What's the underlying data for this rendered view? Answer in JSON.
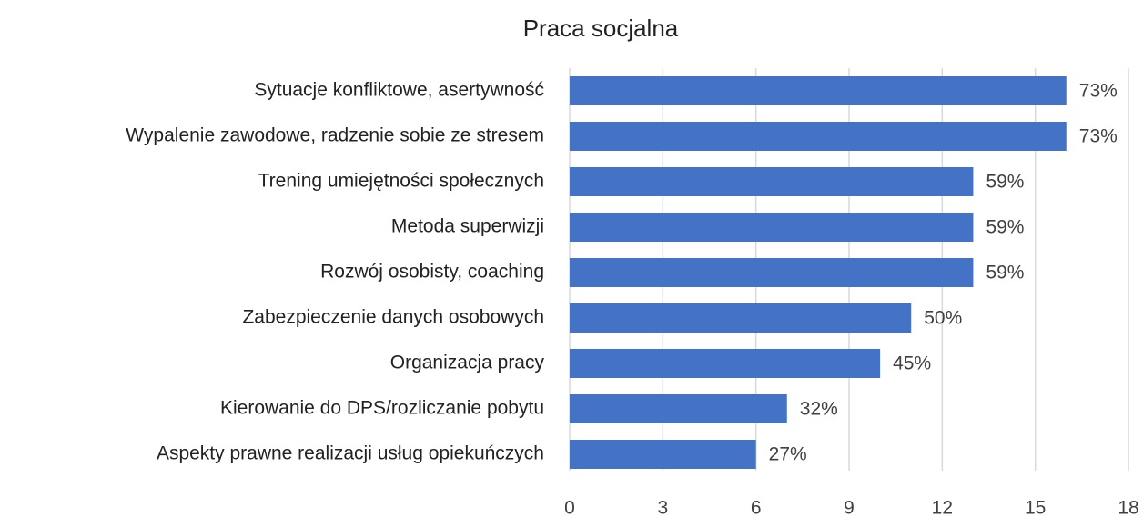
{
  "chart_data": {
    "type": "hbar",
    "title": "Praca socjalna",
    "categories": [
      "Sytuacje konfliktowe, asertywność",
      "Wypalenie zawodowe, radzenie sobie ze stresem",
      "Trening umiejętności społecznych",
      "Metoda superwizji",
      "Rozwój osobisty, coaching",
      "Zabezpieczenie danych osobowych",
      "Organizacja pracy",
      "Kierowanie do DPS/rozliczanie pobytu",
      "Aspekty prawne realizacji usług opiekuńczych"
    ],
    "values": [
      16,
      16,
      13,
      13,
      13,
      11,
      10,
      7,
      6
    ],
    "value_labels": [
      "73%",
      "73%",
      "59%",
      "59%",
      "59%",
      "50%",
      "45%",
      "32%",
      "27%"
    ],
    "color": "#4472c4",
    "xlim": [
      0,
      18
    ],
    "xticks": [
      0,
      3,
      6,
      9,
      12,
      15,
      18
    ],
    "grid": true
  }
}
